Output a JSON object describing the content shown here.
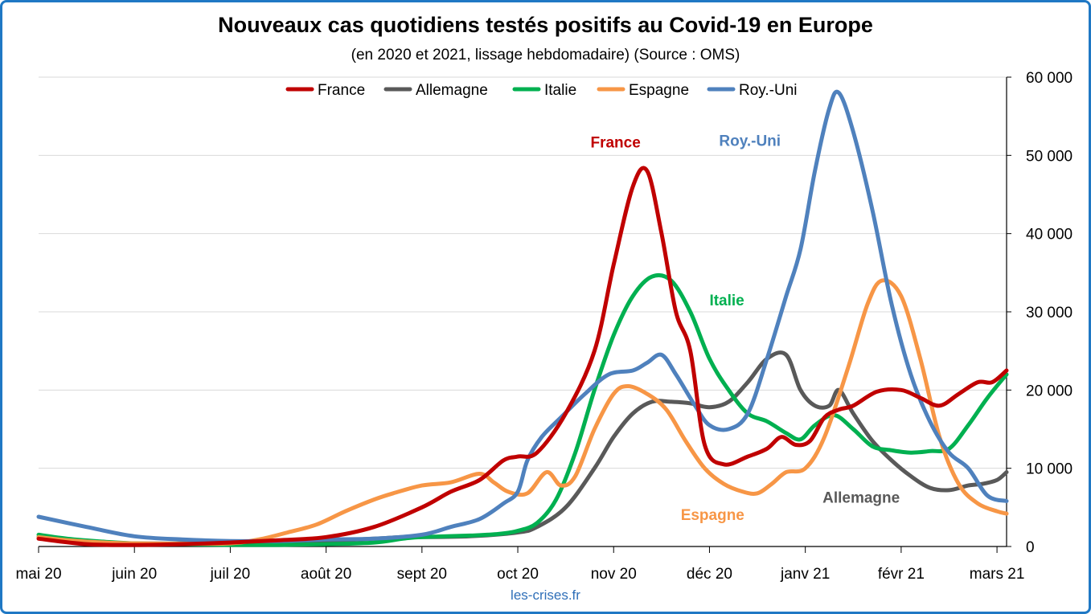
{
  "title": "Nouveaux cas quotidiens testés positifs au Covid-19 en Europe",
  "subtitle": "(en 2020 et 2021, lissage hebdomadaire) (Source : OMS)",
  "source": "les-crises.fr",
  "chart_data": {
    "type": "line",
    "title": "Nouveaux cas quotidiens testés positifs au Covid-19 en Europe",
    "subtitle": "(en 2020 et 2021, lissage hebdomadaire) (Source : OMS)",
    "xlabel": "",
    "ylabel": "",
    "x_axis": {
      "type": "month_index",
      "range": [
        0,
        10.1
      ],
      "ticks": [
        0,
        1,
        2,
        3,
        4,
        5,
        6,
        7,
        8,
        9,
        10
      ],
      "tick_labels": [
        "mai 20",
        "juin 20",
        "juil 20",
        "août 20",
        "sept 20",
        "oct 20",
        "nov 20",
        "déc 20",
        "janv 21",
        "févr 21",
        "mars 21"
      ]
    },
    "y_axis": {
      "position": "right",
      "range": [
        0,
        60000
      ],
      "ticks": [
        0,
        10000,
        20000,
        30000,
        40000,
        50000,
        60000
      ],
      "tick_labels": [
        "0",
        "10 000",
        "20 000",
        "30 000",
        "40 000",
        "50 000",
        "60 000"
      ],
      "grid": true
    },
    "legend": {
      "position": "top"
    },
    "series": [
      {
        "name": "France",
        "color": "#c00000",
        "inline_label": "France",
        "points": [
          [
            0,
            1000
          ],
          [
            0.5,
            300
          ],
          [
            1,
            200
          ],
          [
            1.5,
            300
          ],
          [
            2,
            500
          ],
          [
            2.5,
            800
          ],
          [
            3,
            1200
          ],
          [
            3.5,
            2500
          ],
          [
            4,
            5000
          ],
          [
            4.3,
            7000
          ],
          [
            4.6,
            8500
          ],
          [
            4.85,
            11000
          ],
          [
            5,
            11500
          ],
          [
            5.2,
            12000
          ],
          [
            5.5,
            17000
          ],
          [
            5.8,
            25000
          ],
          [
            6.0,
            36000
          ],
          [
            6.2,
            46000
          ],
          [
            6.35,
            48000
          ],
          [
            6.5,
            40000
          ],
          [
            6.65,
            30000
          ],
          [
            6.8,
            25000
          ],
          [
            6.95,
            13000
          ],
          [
            7.15,
            10500
          ],
          [
            7.4,
            11500
          ],
          [
            7.6,
            12500
          ],
          [
            7.75,
            14000
          ],
          [
            7.9,
            13000
          ],
          [
            8.05,
            13500
          ],
          [
            8.2,
            16500
          ],
          [
            8.35,
            17500
          ],
          [
            8.5,
            18000
          ],
          [
            8.75,
            19800
          ],
          [
            9.0,
            20000
          ],
          [
            9.2,
            19000
          ],
          [
            9.4,
            18000
          ],
          [
            9.6,
            19500
          ],
          [
            9.8,
            21000
          ],
          [
            9.95,
            21000
          ],
          [
            10.1,
            22500
          ]
        ]
      },
      {
        "name": "Allemagne",
        "color": "#595959",
        "inline_label": "Allemagne",
        "points": [
          [
            0,
            1200
          ],
          [
            0.5,
            600
          ],
          [
            1,
            400
          ],
          [
            1.5,
            400
          ],
          [
            2,
            500
          ],
          [
            2.5,
            500
          ],
          [
            3,
            700
          ],
          [
            3.5,
            1000
          ],
          [
            3.8,
            1200
          ],
          [
            4,
            1200
          ],
          [
            4.5,
            1300
          ],
          [
            5,
            1800
          ],
          [
            5.2,
            2500
          ],
          [
            5.5,
            5000
          ],
          [
            5.8,
            10000
          ],
          [
            6.0,
            14000
          ],
          [
            6.2,
            17000
          ],
          [
            6.4,
            18500
          ],
          [
            6.6,
            18500
          ],
          [
            6.8,
            18300
          ],
          [
            7.0,
            17800
          ],
          [
            7.2,
            18500
          ],
          [
            7.4,
            21000
          ],
          [
            7.6,
            24000
          ],
          [
            7.8,
            24500
          ],
          [
            7.95,
            20000
          ],
          [
            8.1,
            18000
          ],
          [
            8.25,
            18000
          ],
          [
            8.35,
            20000
          ],
          [
            8.5,
            17000
          ],
          [
            8.7,
            13500
          ],
          [
            8.9,
            11000
          ],
          [
            9.1,
            9000
          ],
          [
            9.3,
            7500
          ],
          [
            9.5,
            7200
          ],
          [
            9.7,
            7800
          ],
          [
            9.85,
            8000
          ],
          [
            10.0,
            8500
          ],
          [
            10.1,
            9500
          ]
        ]
      },
      {
        "name": "Italie",
        "color": "#00b050",
        "inline_label": "Italie",
        "points": [
          [
            0,
            1500
          ],
          [
            0.3,
            1000
          ],
          [
            0.7,
            600
          ],
          [
            1,
            400
          ],
          [
            1.5,
            300
          ],
          [
            2,
            200
          ],
          [
            2.5,
            200
          ],
          [
            3,
            300
          ],
          [
            3.5,
            500
          ],
          [
            3.8,
            1000
          ],
          [
            4,
            1200
          ],
          [
            4.5,
            1400
          ],
          [
            4.8,
            1600
          ],
          [
            5,
            2000
          ],
          [
            5.2,
            3000
          ],
          [
            5.4,
            6000
          ],
          [
            5.6,
            12000
          ],
          [
            5.8,
            20000
          ],
          [
            6.0,
            27000
          ],
          [
            6.2,
            32000
          ],
          [
            6.4,
            34500
          ],
          [
            6.6,
            34000
          ],
          [
            6.8,
            30000
          ],
          [
            7.0,
            24000
          ],
          [
            7.2,
            20000
          ],
          [
            7.4,
            17000
          ],
          [
            7.6,
            16000
          ],
          [
            7.8,
            14500
          ],
          [
            7.95,
            13700
          ],
          [
            8.1,
            15500
          ],
          [
            8.3,
            16800
          ],
          [
            8.5,
            15000
          ],
          [
            8.7,
            12800
          ],
          [
            8.9,
            12300
          ],
          [
            9.1,
            12000
          ],
          [
            9.3,
            12200
          ],
          [
            9.5,
            12500
          ],
          [
            9.7,
            15500
          ],
          [
            9.9,
            19000
          ],
          [
            10.1,
            22000
          ]
        ]
      },
      {
        "name": "Espagne",
        "color": "#f79646",
        "inline_label": "Espagne",
        "points": [
          [
            0,
            1200
          ],
          [
            0.3,
            800
          ],
          [
            0.7,
            500
          ],
          [
            1,
            400
          ],
          [
            1.5,
            350
          ],
          [
            2,
            400
          ],
          [
            2.3,
            900
          ],
          [
            2.6,
            1800
          ],
          [
            2.9,
            2800
          ],
          [
            3.2,
            4500
          ],
          [
            3.5,
            6000
          ],
          [
            3.7,
            6800
          ],
          [
            4,
            7800
          ],
          [
            4.3,
            8200
          ],
          [
            4.6,
            9300
          ],
          [
            4.75,
            8200
          ],
          [
            4.9,
            7000
          ],
          [
            5.1,
            6800
          ],
          [
            5.3,
            9500
          ],
          [
            5.45,
            7800
          ],
          [
            5.6,
            9000
          ],
          [
            5.8,
            15000
          ],
          [
            6.0,
            19500
          ],
          [
            6.15,
            20500
          ],
          [
            6.35,
            19500
          ],
          [
            6.55,
            17500
          ],
          [
            6.75,
            13500
          ],
          [
            6.95,
            10000
          ],
          [
            7.15,
            8000
          ],
          [
            7.35,
            7000
          ],
          [
            7.5,
            6800
          ],
          [
            7.65,
            8000
          ],
          [
            7.8,
            9500
          ],
          [
            8.0,
            10000
          ],
          [
            8.2,
            14000
          ],
          [
            8.45,
            23000
          ],
          [
            8.65,
            31000
          ],
          [
            8.8,
            34000
          ],
          [
            9.0,
            32000
          ],
          [
            9.2,
            24000
          ],
          [
            9.4,
            14000
          ],
          [
            9.6,
            8000
          ],
          [
            9.8,
            5500
          ],
          [
            10.0,
            4500
          ],
          [
            10.1,
            4200
          ]
        ]
      },
      {
        "name": "Roy.-Uni",
        "color": "#4f81bd",
        "inline_label": "Roy.-Uni",
        "points": [
          [
            0,
            3800
          ],
          [
            0.5,
            2500
          ],
          [
            1,
            1300
          ],
          [
            1.5,
            900
          ],
          [
            2,
            700
          ],
          [
            2.5,
            700
          ],
          [
            3,
            900
          ],
          [
            3.5,
            1000
          ],
          [
            4,
            1500
          ],
          [
            4.3,
            2500
          ],
          [
            4.6,
            3500
          ],
          [
            4.85,
            5500
          ],
          [
            5,
            7000
          ],
          [
            5.1,
            11000
          ],
          [
            5.25,
            14000
          ],
          [
            5.45,
            16500
          ],
          [
            5.7,
            19500
          ],
          [
            5.95,
            22000
          ],
          [
            6.2,
            22500
          ],
          [
            6.35,
            23500
          ],
          [
            6.5,
            24500
          ],
          [
            6.65,
            22000
          ],
          [
            6.85,
            18000
          ],
          [
            7.0,
            15500
          ],
          [
            7.2,
            15000
          ],
          [
            7.4,
            17000
          ],
          [
            7.6,
            24000
          ],
          [
            7.8,
            32000
          ],
          [
            7.95,
            38000
          ],
          [
            8.1,
            48000
          ],
          [
            8.25,
            56000
          ],
          [
            8.35,
            58000
          ],
          [
            8.5,
            53000
          ],
          [
            8.7,
            43000
          ],
          [
            8.9,
            31000
          ],
          [
            9.1,
            22000
          ],
          [
            9.3,
            16000
          ],
          [
            9.5,
            12000
          ],
          [
            9.7,
            10000
          ],
          [
            9.9,
            6500
          ],
          [
            10.1,
            5800
          ]
        ]
      }
    ]
  }
}
